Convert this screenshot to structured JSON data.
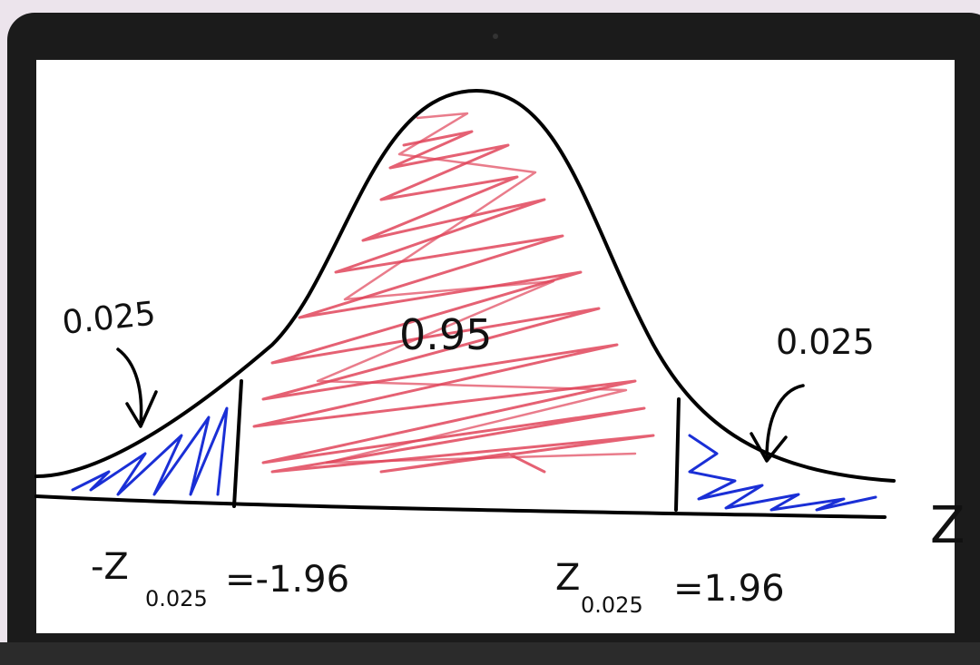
{
  "diagram": {
    "areas": {
      "left_tail": "0.025",
      "center": "0.95",
      "right_tail": "0.025"
    },
    "critical_values": [
      {
        "symbol": "-Z",
        "subscript": "0.025",
        "value": "=-1.96"
      },
      {
        "symbol": "Z",
        "subscript": "0.025",
        "value": "=1.96"
      }
    ],
    "axis_label": "Z"
  }
}
